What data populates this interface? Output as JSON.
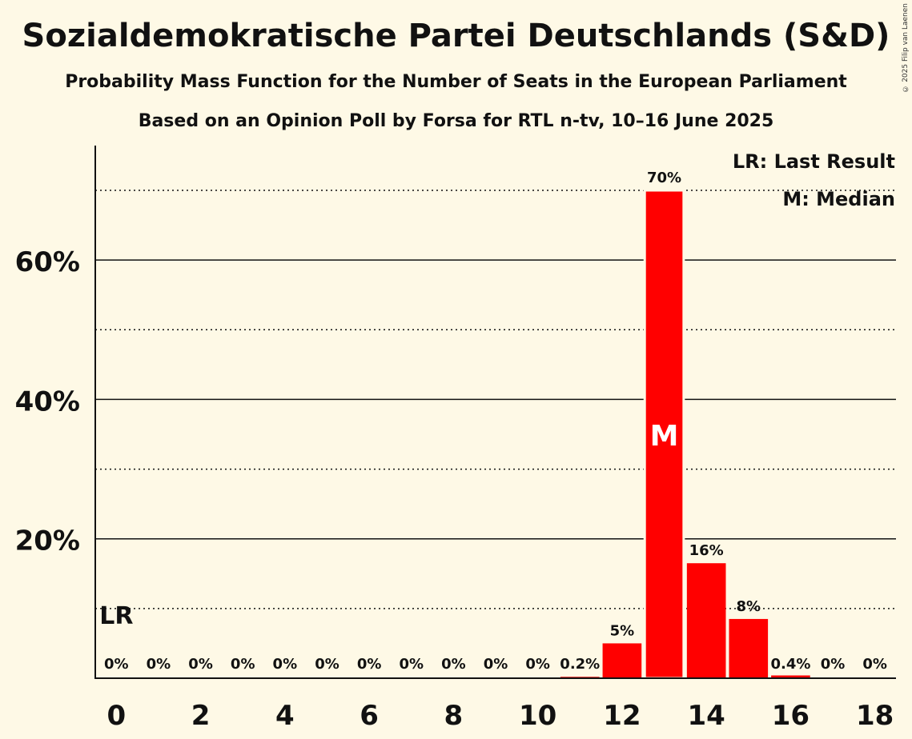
{
  "header": {
    "title": "Sozialdemokratische Partei Deutschlands (S&D)",
    "subtitle": "Probability Mass Function for the Number of Seats in the European Parliament",
    "subtitle2": "Based on an Opinion Poll by Forsa for RTL n-tv, 10–16 June 2025",
    "copyright": "© 2025 Filip van Laenen"
  },
  "legend": {
    "last_result": "LR: Last Result",
    "median": "M: Median"
  },
  "colors": {
    "background": "#FEF9E6",
    "bar": "#FF0000",
    "text": "#111111"
  },
  "chart_data": {
    "type": "bar",
    "categories": [
      0,
      1,
      2,
      3,
      4,
      5,
      6,
      7,
      8,
      9,
      10,
      11,
      12,
      13,
      14,
      15,
      16,
      17,
      18
    ],
    "values": [
      0,
      0,
      0,
      0,
      0,
      0,
      0,
      0,
      0,
      0,
      0,
      0.2,
      5,
      70,
      16.5,
      8.5,
      0.4,
      0,
      0
    ],
    "value_labels": [
      "0%",
      "0%",
      "0%",
      "0%",
      "0%",
      "0%",
      "0%",
      "0%",
      "0%",
      "0%",
      "0%",
      "0.2%",
      "5%",
      "70%",
      "16%",
      "8%",
      "0.4%",
      "0%",
      "0%"
    ],
    "x_tick_labels": [
      "0",
      "2",
      "4",
      "6",
      "8",
      "10",
      "12",
      "14",
      "16",
      "18"
    ],
    "y_tick_labels": [
      "20%",
      "40%",
      "60%"
    ],
    "y_major_ticks": [
      20,
      40,
      60
    ],
    "y_minor_ticks": [
      10,
      30,
      50,
      70
    ],
    "ylim": [
      0,
      76
    ],
    "last_result_seat": 0,
    "last_result_marker": "LR",
    "median_seat": 13,
    "median_marker": "M",
    "legend_position": "top-right"
  }
}
